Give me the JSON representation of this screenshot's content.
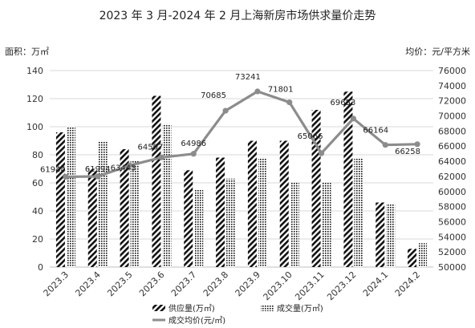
{
  "chart_data": {
    "type": "bar+line",
    "title": "2023 年 3 月-2024 年 2 月上海新房市场供求量价走势",
    "left_unit_label": "面积：万㎡",
    "right_unit_label": "均价：元/平方米",
    "categories": [
      "2023.3",
      "2023.4",
      "2023.5",
      "2023.6",
      "2023.7",
      "2023.8",
      "2023.9",
      "2023.10",
      "2023.11",
      "2023.12",
      "2024.1",
      "2024.2"
    ],
    "left_axis": {
      "min": 0,
      "max": 140,
      "step": 20,
      "ticks": [
        "0",
        "20",
        "40",
        "60",
        "80",
        "100",
        "120",
        "140"
      ]
    },
    "right_axis": {
      "min": 50000,
      "max": 76000,
      "step": 2000,
      "ticks": [
        "50000",
        "52000",
        "54000",
        "56000",
        "58000",
        "60000",
        "62000",
        "64000",
        "66000",
        "68000",
        "70000",
        "72000",
        "74000",
        "76000"
      ]
    },
    "series": [
      {
        "name": "供应量(万㎡)",
        "kind": "bar",
        "axis": "left",
        "pattern": "diagonal",
        "values": [
          96,
          70,
          84,
          122,
          69,
          78,
          90,
          90,
          112,
          125,
          46,
          13
        ]
      },
      {
        "name": "成交量(万㎡)",
        "kind": "bar",
        "axis": "left",
        "pattern": "dots",
        "values": [
          100,
          90,
          76,
          102,
          55,
          63,
          78,
          60,
          60,
          78,
          45,
          17
        ]
      },
      {
        "name": "成交均价(元/㎡)",
        "kind": "line",
        "axis": "right",
        "color": "#8c8c8c",
        "values": [
          61944,
          61994,
          63443,
          64507,
          64986,
          70685,
          73241,
          71801,
          65066,
          69653,
          66164,
          66258
        ],
        "labels": [
          "61944",
          "61994",
          "63443",
          "64507",
          "64986",
          "70685",
          "73241",
          "71801",
          "65066",
          "69653",
          "66164",
          "66258"
        ]
      }
    ],
    "grid": true,
    "legend_position": "bottom"
  }
}
